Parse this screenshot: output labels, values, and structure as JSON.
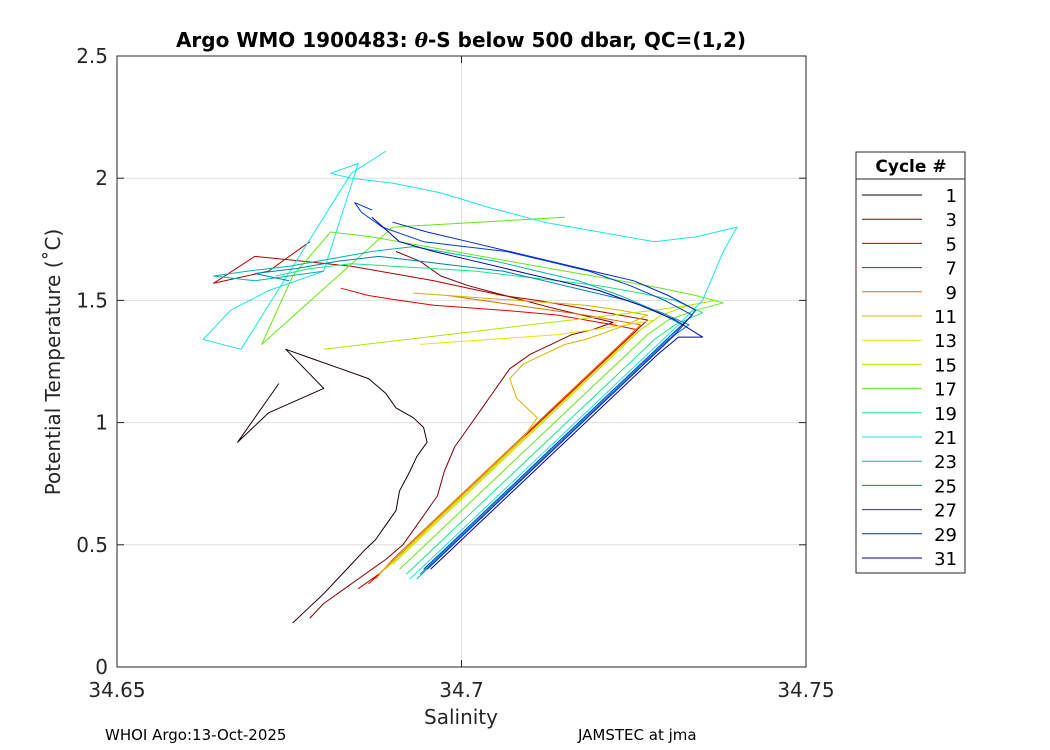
{
  "chart_data": {
    "type": "line",
    "title": "Argo WMO 1900483: θ-S below 500 dbar,  QC=(1,2)",
    "title_parts": {
      "prefix": "Argo WMO 1900483: ",
      "theta": "θ",
      "suffix": "-S below 500 dbar,  QC=(1,2)"
    },
    "xlabel": "Salinity",
    "ylabel": "Potential Temperature (˚C)",
    "xlim": [
      34.65,
      34.75
    ],
    "ylim": [
      0,
      2.5
    ],
    "xticks": [
      34.65,
      34.7,
      34.75
    ],
    "xtick_labels": [
      "34.65",
      "34.7",
      "34.75"
    ],
    "yticks": [
      0,
      0.5,
      1,
      1.5,
      2,
      2.5
    ],
    "ytick_labels": [
      "0",
      "0.5",
      "1",
      "1.5",
      "2",
      "2.5"
    ],
    "grid": true,
    "legend": {
      "title": "Cycle #",
      "position": "right",
      "entries": [
        "1",
        "3",
        "5",
        "7",
        "9",
        "11",
        "13",
        "15",
        "17",
        "19",
        "21",
        "23",
        "25",
        "27",
        "29",
        "31"
      ],
      "colors": [
        "#1a0000",
        "#800000",
        "#b30000",
        "#e60000",
        "#e66a00",
        "#d9b300",
        "#e6e600",
        "#b3e600",
        "#66e61a",
        "#1ae680",
        "#1ae6e6",
        "#00b3b3",
        "#0080b3",
        "#0040cc",
        "#0020e6",
        "#0000b3"
      ]
    },
    "series": [
      {
        "name": "1",
        "color": "#1a0000",
        "s": [
          34.6755,
          34.677,
          34.68,
          34.682,
          34.684,
          34.686,
          34.6875,
          34.689,
          34.6905,
          34.691,
          34.6925,
          34.6935,
          34.695,
          34.6945,
          34.693,
          34.6905,
          34.689,
          34.6865,
          34.6825,
          34.6785,
          34.6745,
          34.68,
          34.672,
          34.6675,
          34.6735
        ],
        "t": [
          0.18,
          0.22,
          0.3,
          0.36,
          0.42,
          0.48,
          0.52,
          0.58,
          0.64,
          0.72,
          0.8,
          0.86,
          0.92,
          0.98,
          1.02,
          1.06,
          1.12,
          1.18,
          1.22,
          1.26,
          1.3,
          1.14,
          1.04,
          0.92,
          1.16
        ]
      },
      {
        "name": "3",
        "color": "#800000",
        "s": [
          34.678,
          34.68,
          34.683,
          34.686,
          34.689,
          34.6915,
          34.694,
          34.6965,
          34.6975,
          34.699,
          34.701,
          34.703,
          34.705,
          34.707,
          34.71,
          34.713,
          34.716,
          34.719,
          34.722,
          34.719,
          34.716,
          34.713,
          34.709,
          34.705,
          34.701,
          34.697,
          34.694,
          34.6905
        ],
        "t": [
          0.2,
          0.26,
          0.32,
          0.38,
          0.44,
          0.5,
          0.6,
          0.7,
          0.8,
          0.9,
          0.98,
          1.06,
          1.14,
          1.22,
          1.28,
          1.32,
          1.36,
          1.38,
          1.41,
          1.43,
          1.45,
          1.47,
          1.5,
          1.53,
          1.56,
          1.6,
          1.66,
          1.7
        ]
      },
      {
        "name": "5",
        "color": "#b30000",
        "s": [
          34.685,
          34.688,
          34.691,
          34.694,
          34.697,
          34.7,
          34.703,
          34.706,
          34.709,
          34.712,
          34.715,
          34.718,
          34.721,
          34.724,
          34.727,
          34.723,
          34.719,
          34.715,
          34.711,
          34.706,
          34.701,
          34.696,
          34.69,
          34.684,
          34.677,
          34.67,
          34.664,
          34.672,
          34.678
        ],
        "t": [
          0.32,
          0.38,
          0.46,
          0.54,
          0.62,
          0.7,
          0.78,
          0.86,
          0.94,
          1.02,
          1.1,
          1.18,
          1.26,
          1.34,
          1.42,
          1.44,
          1.46,
          1.48,
          1.5,
          1.52,
          1.55,
          1.58,
          1.61,
          1.64,
          1.66,
          1.68,
          1.57,
          1.62,
          1.74
        ]
      },
      {
        "name": "7",
        "color": "#e60000",
        "s": [
          34.6865,
          34.6895,
          34.6925,
          34.6955,
          34.6985,
          34.7015,
          34.7045,
          34.7075,
          34.7105,
          34.7135,
          34.7165,
          34.7195,
          34.7225,
          34.7255,
          34.722,
          34.718,
          34.714,
          34.71,
          34.706,
          34.701,
          34.696,
          34.691,
          34.6865,
          34.6825
        ],
        "t": [
          0.34,
          0.42,
          0.5,
          0.58,
          0.66,
          0.74,
          0.82,
          0.9,
          0.98,
          1.06,
          1.14,
          1.22,
          1.3,
          1.38,
          1.4,
          1.42,
          1.44,
          1.45,
          1.46,
          1.47,
          1.48,
          1.5,
          1.52,
          1.55
        ]
      },
      {
        "name": "9",
        "color": "#e66a00",
        "s": [
          34.6875,
          34.69,
          34.693,
          34.696,
          34.699,
          34.702,
          34.705,
          34.708,
          34.711,
          34.714,
          34.717,
          34.72,
          34.723,
          34.726,
          34.722,
          34.718,
          34.713,
          34.708,
          34.703,
          34.698
        ],
        "t": [
          0.36,
          0.44,
          0.52,
          0.6,
          0.68,
          0.76,
          0.84,
          0.92,
          1.0,
          1.08,
          1.16,
          1.24,
          1.32,
          1.4,
          1.42,
          1.44,
          1.46,
          1.48,
          1.5,
          1.52
        ]
      },
      {
        "name": "11",
        "color": "#d9b300",
        "s": [
          34.688,
          34.691,
          34.694,
          34.697,
          34.7,
          34.703,
          34.706,
          34.709,
          34.711,
          34.708,
          34.707,
          34.709,
          34.712,
          34.715,
          34.718,
          34.721,
          34.724,
          34.727,
          34.723,
          34.718,
          34.713,
          34.708,
          34.703,
          34.698,
          34.693
        ],
        "t": [
          0.38,
          0.46,
          0.54,
          0.62,
          0.7,
          0.78,
          0.86,
          0.94,
          1.02,
          1.1,
          1.18,
          1.24,
          1.28,
          1.32,
          1.34,
          1.37,
          1.4,
          1.44,
          1.46,
          1.48,
          1.49,
          1.5,
          1.51,
          1.52,
          1.53
        ]
      },
      {
        "name": "13",
        "color": "#e6e600",
        "s": [
          34.689,
          34.692,
          34.695,
          34.698,
          34.701,
          34.704,
          34.707,
          34.71,
          34.713,
          34.716,
          34.719,
          34.722,
          34.725,
          34.728,
          34.724,
          34.719,
          34.714,
          34.709,
          34.704,
          34.699,
          34.694
        ],
        "t": [
          0.4,
          0.48,
          0.56,
          0.64,
          0.72,
          0.8,
          0.88,
          0.96,
          1.04,
          1.12,
          1.2,
          1.28,
          1.36,
          1.42,
          1.4,
          1.38,
          1.36,
          1.35,
          1.34,
          1.33,
          1.32
        ]
      },
      {
        "name": "15",
        "color": "#b3e600",
        "s": [
          34.69,
          34.693,
          34.696,
          34.699,
          34.702,
          34.705,
          34.708,
          34.711,
          34.714,
          34.717,
          34.72,
          34.723,
          34.726,
          34.729,
          34.733,
          34.737,
          34.733,
          34.728,
          34.722,
          34.716,
          34.71,
          34.704,
          34.698,
          34.692,
          34.686,
          34.68
        ],
        "t": [
          0.42,
          0.5,
          0.58,
          0.66,
          0.74,
          0.82,
          0.9,
          0.98,
          1.06,
          1.14,
          1.22,
          1.3,
          1.38,
          1.44,
          1.48,
          1.5,
          1.48,
          1.46,
          1.44,
          1.42,
          1.4,
          1.38,
          1.36,
          1.34,
          1.32,
          1.3
        ]
      },
      {
        "name": "17",
        "color": "#66e61a",
        "s": [
          34.691,
          34.694,
          34.697,
          34.7,
          34.703,
          34.706,
          34.709,
          34.712,
          34.715,
          34.718,
          34.721,
          34.724,
          34.727,
          34.73,
          34.734,
          34.738,
          34.734,
          34.729,
          34.723,
          34.717,
          34.711,
          34.705,
          34.699,
          34.693,
          34.687,
          34.681,
          34.6755,
          34.671,
          34.69,
          34.715
        ],
        "t": [
          0.4,
          0.48,
          0.56,
          0.64,
          0.72,
          0.8,
          0.88,
          0.96,
          1.04,
          1.12,
          1.2,
          1.28,
          1.36,
          1.42,
          1.46,
          1.49,
          1.52,
          1.55,
          1.58,
          1.61,
          1.64,
          1.67,
          1.7,
          1.73,
          1.76,
          1.78,
          1.6,
          1.32,
          1.8,
          1.84
        ]
      },
      {
        "name": "19",
        "color": "#1ae680",
        "s": [
          34.692,
          34.695,
          34.698,
          34.701,
          34.704,
          34.707,
          34.71,
          34.713,
          34.716,
          34.719,
          34.722,
          34.725,
          34.728,
          34.731,
          34.735,
          34.731,
          34.726,
          34.72,
          34.714,
          34.708,
          34.702,
          34.696,
          34.69,
          34.684,
          34.678,
          34.673
        ],
        "t": [
          0.38,
          0.46,
          0.54,
          0.62,
          0.7,
          0.78,
          0.86,
          0.94,
          1.02,
          1.1,
          1.18,
          1.26,
          1.34,
          1.4,
          1.45,
          1.5,
          1.53,
          1.56,
          1.58,
          1.6,
          1.62,
          1.63,
          1.64,
          1.65,
          1.63,
          1.6
        ]
      },
      {
        "name": "21",
        "color": "#1ae6e6",
        "s": [
          34.6925,
          34.6955,
          34.6985,
          34.7015,
          34.7045,
          34.7075,
          34.7105,
          34.7135,
          34.7165,
          34.7195,
          34.7225,
          34.7255,
          34.7285,
          34.7315,
          34.735,
          34.738,
          34.74,
          34.734,
          34.728,
          34.72,
          34.712,
          34.704,
          34.697,
          34.69,
          34.684,
          34.681,
          34.685,
          34.68,
          34.672,
          34.6665,
          34.6625,
          34.668,
          34.684,
          34.689
        ],
        "t": [
          0.36,
          0.44,
          0.52,
          0.6,
          0.68,
          0.76,
          0.84,
          0.92,
          1.0,
          1.08,
          1.16,
          1.24,
          1.32,
          1.4,
          1.5,
          1.7,
          1.8,
          1.76,
          1.74,
          1.78,
          1.82,
          1.88,
          1.94,
          1.98,
          2.0,
          2.02,
          2.06,
          1.62,
          1.54,
          1.46,
          1.34,
          1.3,
          2.02,
          2.11
        ]
      },
      {
        "name": "23",
        "color": "#00b3b3",
        "s": [
          34.6935,
          34.6965,
          34.6995,
          34.7025,
          34.7055,
          34.7085,
          34.7115,
          34.7145,
          34.7175,
          34.7205,
          34.7235,
          34.7265,
          34.7295,
          34.732,
          34.728,
          34.723,
          34.717,
          34.711,
          34.705,
          34.699,
          34.693,
          34.687,
          34.681,
          34.675,
          34.669,
          34.664,
          34.67,
          34.68
        ],
        "t": [
          0.36,
          0.44,
          0.52,
          0.6,
          0.68,
          0.76,
          0.84,
          0.92,
          1.0,
          1.08,
          1.16,
          1.24,
          1.32,
          1.4,
          1.46,
          1.52,
          1.58,
          1.62,
          1.66,
          1.69,
          1.72,
          1.7,
          1.67,
          1.64,
          1.62,
          1.6,
          1.58,
          1.62
        ]
      },
      {
        "name": "25",
        "color": "#0080b3",
        "s": [
          34.694,
          34.697,
          34.7,
          34.703,
          34.706,
          34.709,
          34.712,
          34.715,
          34.718,
          34.721,
          34.724,
          34.727,
          34.73,
          34.733,
          34.729,
          34.724,
          34.718,
          34.712,
          34.706,
          34.7,
          34.694,
          34.688,
          34.682,
          34.676,
          34.67,
          34.675
        ],
        "t": [
          0.38,
          0.46,
          0.54,
          0.62,
          0.7,
          0.78,
          0.86,
          0.94,
          1.02,
          1.1,
          1.18,
          1.26,
          1.34,
          1.4,
          1.45,
          1.5,
          1.54,
          1.58,
          1.62,
          1.64,
          1.66,
          1.68,
          1.66,
          1.63,
          1.61,
          1.58
        ]
      },
      {
        "name": "27",
        "color": "#0040cc",
        "s": [
          34.6945,
          34.6975,
          34.7005,
          34.7035,
          34.7065,
          34.7095,
          34.7125,
          34.7155,
          34.7185,
          34.7215,
          34.7245,
          34.7275,
          34.7305,
          34.7335,
          34.7295,
          34.7245,
          34.7185,
          34.7125,
          34.7065,
          34.7005,
          34.6945,
          34.6885,
          34.6855,
          34.6845,
          34.687
        ],
        "t": [
          0.4,
          0.48,
          0.56,
          0.64,
          0.72,
          0.8,
          0.88,
          0.96,
          1.04,
          1.12,
          1.2,
          1.28,
          1.36,
          1.44,
          1.5,
          1.56,
          1.62,
          1.66,
          1.7,
          1.72,
          1.74,
          1.8,
          1.86,
          1.9,
          1.87
        ]
      },
      {
        "name": "29",
        "color": "#0020e6",
        "s": [
          34.695,
          34.698,
          34.701,
          34.704,
          34.707,
          34.71,
          34.713,
          34.716,
          34.719,
          34.722,
          34.725,
          34.728,
          34.731,
          34.734,
          34.73,
          34.725,
          34.719,
          34.713,
          34.707,
          34.701,
          34.695,
          34.69
        ],
        "t": [
          0.4,
          0.48,
          0.56,
          0.64,
          0.72,
          0.8,
          0.88,
          0.96,
          1.04,
          1.12,
          1.2,
          1.28,
          1.36,
          1.46,
          1.52,
          1.58,
          1.62,
          1.66,
          1.7,
          1.74,
          1.78,
          1.82
        ]
      },
      {
        "name": "31",
        "color": "#0000b3",
        "s": [
          34.6955,
          34.6985,
          34.7015,
          34.7045,
          34.7075,
          34.7105,
          34.7135,
          34.7165,
          34.7195,
          34.7225,
          34.7255,
          34.7285,
          34.7315,
          34.735,
          34.731,
          34.726,
          34.72,
          34.714,
          34.708,
          34.702,
          34.696,
          34.691,
          34.687
        ],
        "t": [
          0.4,
          0.48,
          0.56,
          0.64,
          0.72,
          0.8,
          0.88,
          0.96,
          1.04,
          1.12,
          1.2,
          1.28,
          1.35,
          1.35,
          1.42,
          1.48,
          1.54,
          1.58,
          1.62,
          1.66,
          1.7,
          1.74,
          1.84
        ]
      }
    ]
  },
  "footer": {
    "left": "WHOI Argo:13-Oct-2025",
    "right": "JAMSTEC at jma"
  }
}
